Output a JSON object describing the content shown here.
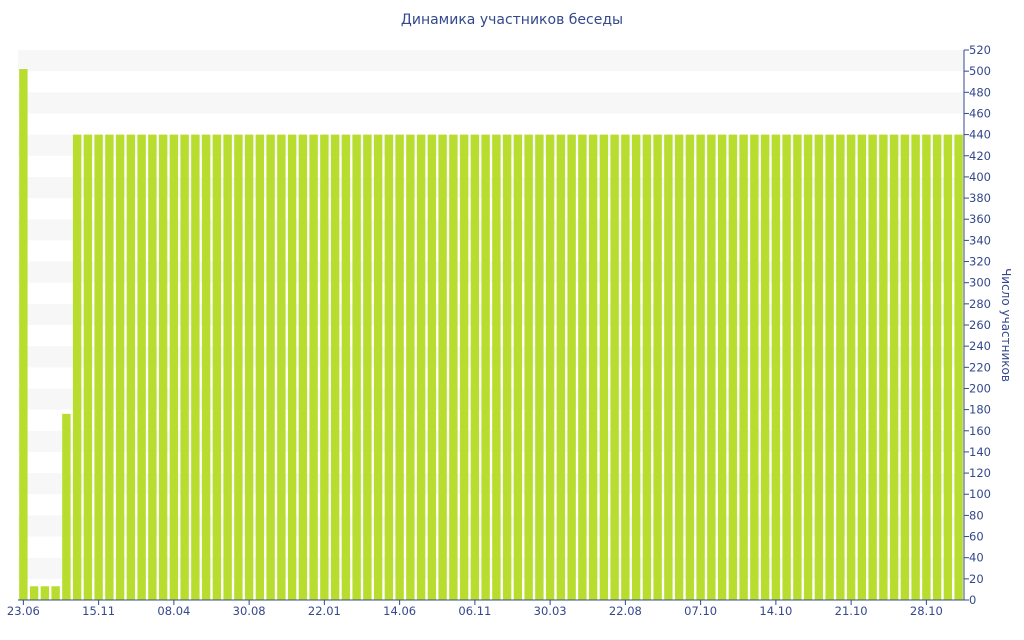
{
  "chart_data": {
    "type": "bar",
    "title": "Динамика участников беседы",
    "xlabel": "",
    "ylabel": "Число участников",
    "ylim": [
      0,
      520
    ],
    "ytick_step": 20,
    "y_axis_side": "right",
    "grid": "alternating horizontal bands",
    "legend": "none",
    "bar_color": "#b8dd2e",
    "band_color": "#f7f7f7",
    "text_color": "#34498c",
    "x_tick_labels": [
      "23.06",
      "15.11",
      "08.04",
      "30.08",
      "22.01",
      "14.06",
      "06.11",
      "30.03",
      "22.08",
      "07.10",
      "14.10",
      "21.10",
      "28.10"
    ],
    "x_tick_label_bar_index": [
      0,
      7,
      14,
      21,
      28,
      35,
      42,
      49,
      56,
      63,
      70,
      77,
      84
    ],
    "values": [
      502,
      13,
      13,
      13,
      176,
      440,
      440,
      440,
      440,
      440,
      440,
      440,
      440,
      440,
      440,
      440,
      440,
      440,
      440,
      440,
      440,
      440,
      440,
      440,
      440,
      440,
      440,
      440,
      440,
      440,
      440,
      440,
      440,
      440,
      440,
      440,
      440,
      440,
      440,
      440,
      440,
      440,
      440,
      440,
      440,
      440,
      440,
      440,
      440,
      440,
      440,
      440,
      440,
      440,
      440,
      440,
      440,
      440,
      440,
      440,
      440,
      440,
      440,
      440,
      440,
      440,
      440,
      440,
      440,
      440,
      440,
      440,
      440,
      440,
      440,
      440,
      440,
      440,
      440,
      440,
      440,
      440,
      440,
      440,
      440,
      440,
      440,
      440
    ]
  }
}
